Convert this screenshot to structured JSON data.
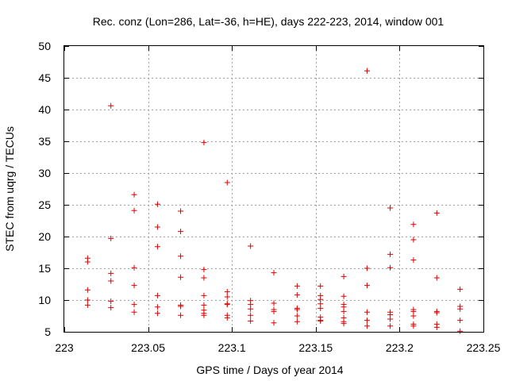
{
  "chart_data": {
    "type": "scatter",
    "title": "Rec. conz (Lon=286, Lat=-36, h=HE), days 222-223, 2014, window 001",
    "xlabel": "GPS time / Days of year 2014",
    "ylabel": "STEC from uqrg / TECUs",
    "xlim": [
      223,
      223.25
    ],
    "ylim": [
      5,
      50
    ],
    "grid": true,
    "xticks": [
      223,
      223.05,
      223.1,
      223.15,
      223.2,
      223.25
    ],
    "xtick_labels": [
      "223",
      "223.05",
      "223.1",
      "223.15",
      "223.2",
      "223.25"
    ],
    "yticks": [
      5,
      10,
      15,
      20,
      25,
      30,
      35,
      40,
      45,
      50
    ],
    "ytick_labels": [
      "5",
      "10",
      "15",
      "20",
      "25",
      "30",
      "35",
      "40",
      "45",
      "50"
    ],
    "marker": "+",
    "color": "#e00000",
    "series": [
      {
        "name": "STEC",
        "points": [
          [
            223.0139,
            16.6
          ],
          [
            223.0139,
            16.0
          ],
          [
            223.0139,
            11.6
          ],
          [
            223.0139,
            10.0
          ],
          [
            223.0139,
            9.2
          ],
          [
            223.0278,
            40.6
          ],
          [
            223.0278,
            19.7
          ],
          [
            223.0278,
            14.2
          ],
          [
            223.0278,
            13.0
          ],
          [
            223.0278,
            9.8
          ],
          [
            223.0278,
            8.8
          ],
          [
            223.0417,
            26.6
          ],
          [
            223.0417,
            24.1
          ],
          [
            223.0417,
            15.1
          ],
          [
            223.0417,
            12.3
          ],
          [
            223.0417,
            9.3
          ],
          [
            223.0417,
            8.1
          ],
          [
            223.0556,
            25.1
          ],
          [
            223.0556,
            21.5
          ],
          [
            223.0556,
            18.4
          ],
          [
            223.0556,
            10.7
          ],
          [
            223.0556,
            8.9
          ],
          [
            223.0556,
            7.9
          ],
          [
            223.0694,
            24.0
          ],
          [
            223.0694,
            20.8
          ],
          [
            223.0694,
            16.9
          ],
          [
            223.0694,
            13.6
          ],
          [
            223.0694,
            9.2
          ],
          [
            223.0694,
            9.0
          ],
          [
            223.0694,
            7.6
          ],
          [
            223.0833,
            34.8
          ],
          [
            223.0833,
            14.8
          ],
          [
            223.0833,
            13.5
          ],
          [
            223.0833,
            10.7
          ],
          [
            223.0833,
            9.2
          ],
          [
            223.0833,
            8.4
          ],
          [
            223.0833,
            7.9
          ],
          [
            223.0833,
            7.6
          ],
          [
            223.0972,
            28.5
          ],
          [
            223.0972,
            11.3
          ],
          [
            223.0972,
            10.5
          ],
          [
            223.0972,
            9.4
          ],
          [
            223.0972,
            9.3
          ],
          [
            223.0972,
            7.6
          ],
          [
            223.0972,
            7.2
          ],
          [
            223.1111,
            18.5
          ],
          [
            223.1111,
            9.9
          ],
          [
            223.1111,
            9.3
          ],
          [
            223.1111,
            8.6
          ],
          [
            223.1111,
            7.6
          ],
          [
            223.1111,
            6.7
          ],
          [
            223.125,
            14.3
          ],
          [
            223.125,
            9.5
          ],
          [
            223.125,
            8.5
          ],
          [
            223.125,
            8.2
          ],
          [
            223.125,
            6.4
          ],
          [
            223.1389,
            12.2
          ],
          [
            223.1389,
            10.8
          ],
          [
            223.1389,
            8.7
          ],
          [
            223.1389,
            8.5
          ],
          [
            223.1389,
            7.5
          ],
          [
            223.1389,
            6.6
          ],
          [
            223.1528,
            12.2
          ],
          [
            223.1528,
            10.7
          ],
          [
            223.1528,
            10.1
          ],
          [
            223.1528,
            9.4
          ],
          [
            223.1528,
            8.7
          ],
          [
            223.1528,
            7.3
          ],
          [
            223.1528,
            6.8
          ],
          [
            223.1528,
            6.7
          ],
          [
            223.1667,
            13.7
          ],
          [
            223.1667,
            10.6
          ],
          [
            223.1667,
            9.3
          ],
          [
            223.1667,
            8.9
          ],
          [
            223.1667,
            8.2
          ],
          [
            223.1667,
            7.2
          ],
          [
            223.1667,
            6.6
          ],
          [
            223.1667,
            6.3
          ],
          [
            223.1806,
            46.1
          ],
          [
            223.1806,
            15.0
          ],
          [
            223.1806,
            12.3
          ],
          [
            223.1806,
            8.1
          ],
          [
            223.1806,
            6.8
          ],
          [
            223.1806,
            5.9
          ],
          [
            223.1944,
            24.5
          ],
          [
            223.1944,
            17.2
          ],
          [
            223.1944,
            15.1
          ],
          [
            223.1944,
            8.1
          ],
          [
            223.1944,
            7.7
          ],
          [
            223.1944,
            7.0
          ],
          [
            223.1944,
            5.9
          ],
          [
            223.2083,
            21.9
          ],
          [
            223.2083,
            19.5
          ],
          [
            223.2083,
            16.3
          ],
          [
            223.2083,
            8.5
          ],
          [
            223.2083,
            8.2
          ],
          [
            223.2083,
            7.5
          ],
          [
            223.2083,
            6.2
          ],
          [
            223.2083,
            5.9
          ],
          [
            223.2222,
            23.7
          ],
          [
            223.2222,
            13.5
          ],
          [
            223.2222,
            8.2
          ],
          [
            223.2222,
            8.0
          ],
          [
            223.2222,
            6.2
          ],
          [
            223.2222,
            5.7
          ],
          [
            223.2361,
            11.7
          ],
          [
            223.2361,
            9.0
          ],
          [
            223.2361,
            8.6
          ],
          [
            223.2361,
            6.8
          ],
          [
            223.2361,
            5.1
          ]
        ]
      }
    ]
  }
}
